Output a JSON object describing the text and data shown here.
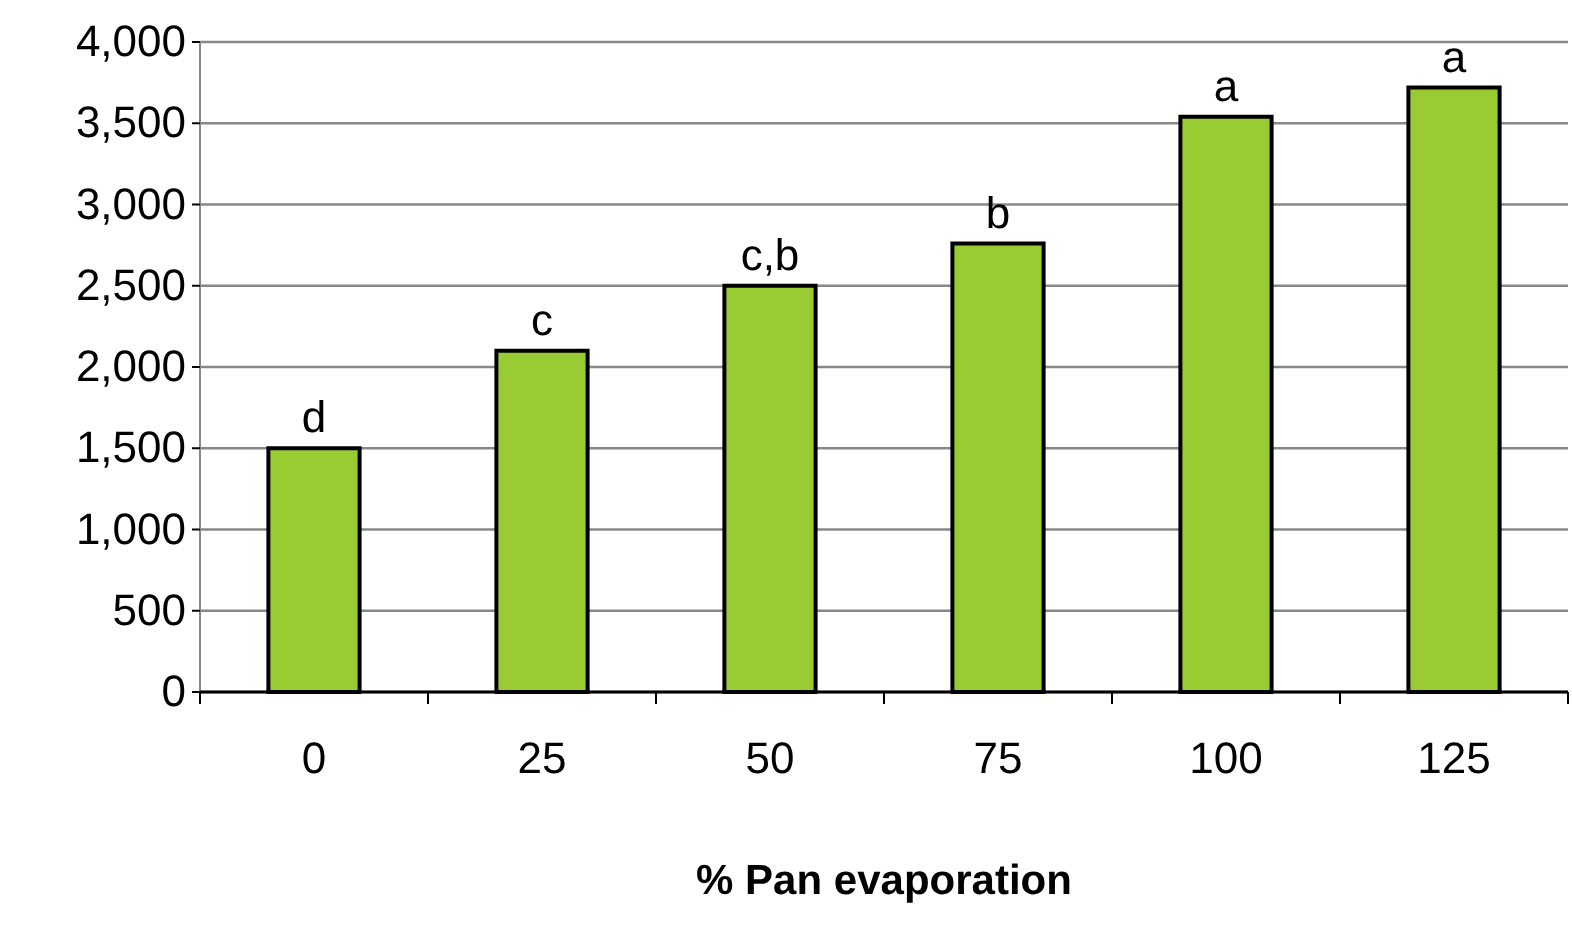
{
  "chart_data": {
    "type": "bar",
    "xlabel": "% Pan evaporation",
    "categories": [
      "0",
      "25",
      "50",
      "75",
      "100",
      "125"
    ],
    "values": [
      1500,
      2100,
      2500,
      2760,
      3540,
      3720
    ],
    "color": "#99cc33",
    "ylim": [
      0,
      4000
    ],
    "yticks": [
      {
        "value": 0,
        "label": "0"
      },
      {
        "value": 500,
        "label": "500"
      },
      {
        "value": 1000,
        "label": "1,000"
      },
      {
        "value": 1500,
        "label": "1,500"
      },
      {
        "value": 2000,
        "label": "2,000"
      },
      {
        "value": 2500,
        "label": "2,500"
      },
      {
        "value": 3000,
        "label": "3,000"
      },
      {
        "value": 3500,
        "label": "3,500"
      },
      {
        "value": 4000,
        "label": "4,000"
      }
    ],
    "grid": "y",
    "annotations": [
      {
        "text": "d",
        "x": "0",
        "y": 1500
      },
      {
        "text": "c",
        "x": "25",
        "y": 2100
      },
      {
        "text": "c,b",
        "x": "50",
        "y": 2500
      },
      {
        "text": "b",
        "x": "75",
        "y": 2760
      },
      {
        "text": "a",
        "x": "100",
        "y": 3540
      },
      {
        "text": "a",
        "x": "125",
        "y": 3720
      }
    ]
  }
}
